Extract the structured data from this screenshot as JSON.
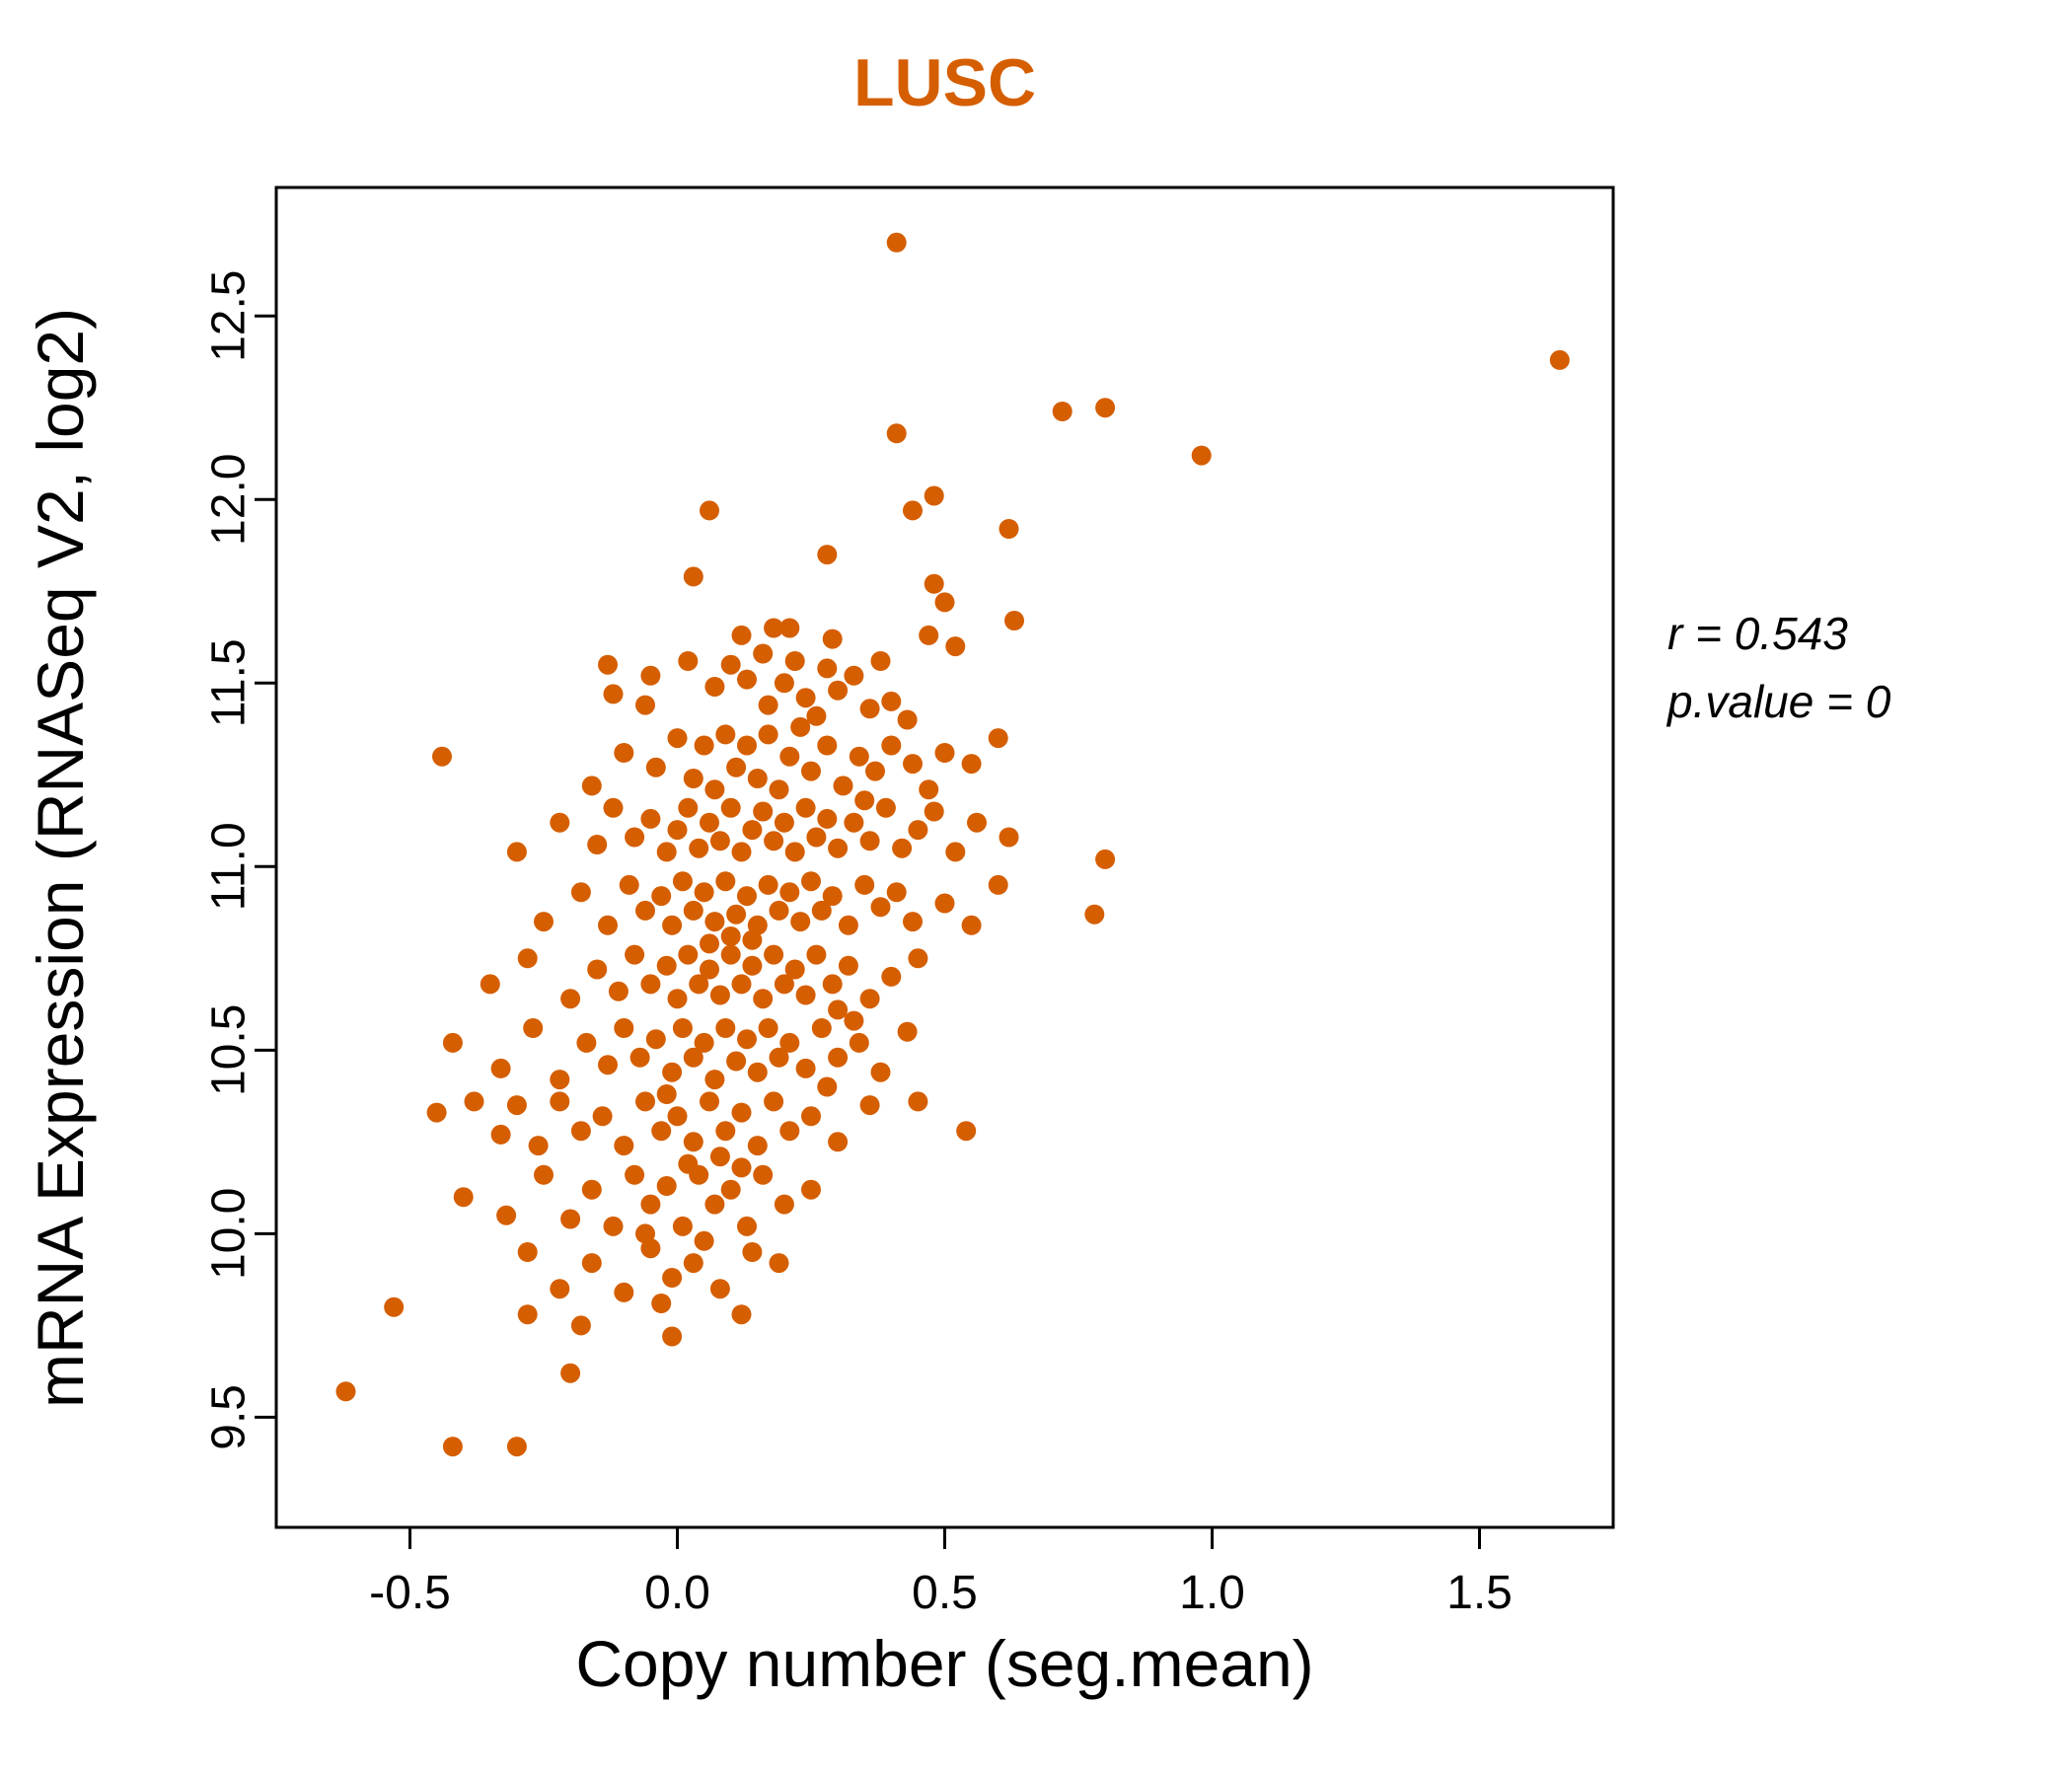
{
  "chart_data": {
    "type": "scatter",
    "title": "LUSC",
    "xlabel": "Copy number (seg.mean)",
    "ylabel": "mRNA Expression (RNASeq V2, log2)",
    "xlim": [
      -0.75,
      1.75
    ],
    "ylim": [
      9.2,
      12.85
    ],
    "x_ticks": [
      -0.5,
      0.0,
      0.5,
      1.0,
      1.5
    ],
    "x_tick_labels": [
      "-0.5",
      "0.0",
      "0.5",
      "1.0",
      "1.5"
    ],
    "y_ticks": [
      9.5,
      10.0,
      10.5,
      11.0,
      11.5,
      12.0,
      12.5
    ],
    "y_tick_labels": [
      "9.5",
      "10.0",
      "10.5",
      "11.0",
      "11.5",
      "12.0",
      "12.5"
    ],
    "grid": false,
    "point_color": "#D55E00",
    "point_radius": 10,
    "points": [
      [
        0.41,
        12.7
      ],
      [
        1.65,
        12.38
      ],
      [
        0.72,
        12.24
      ],
      [
        0.8,
        12.25
      ],
      [
        0.98,
        12.12
      ],
      [
        0.41,
        12.18
      ],
      [
        0.48,
        12.01
      ],
      [
        0.44,
        11.97
      ],
      [
        0.06,
        11.97
      ],
      [
        0.62,
        11.92
      ],
      [
        0.28,
        11.85
      ],
      [
        0.03,
        11.79
      ],
      [
        0.48,
        11.77
      ],
      [
        0.5,
        11.72
      ],
      [
        0.63,
        11.67
      ],
      [
        0.18,
        11.65
      ],
      [
        0.47,
        11.63
      ],
      [
        0.52,
        11.6
      ],
      [
        -0.13,
        11.55
      ],
      [
        -0.12,
        11.47
      ],
      [
        -0.05,
        11.52
      ],
      [
        0.02,
        11.56
      ],
      [
        0.07,
        11.49
      ],
      [
        0.1,
        11.55
      ],
      [
        0.13,
        11.51
      ],
      [
        0.16,
        11.58
      ],
      [
        0.17,
        11.44
      ],
      [
        0.2,
        11.5
      ],
      [
        0.22,
        11.56
      ],
      [
        0.24,
        11.46
      ],
      [
        0.26,
        11.41
      ],
      [
        0.28,
        11.54
      ],
      [
        0.3,
        11.48
      ],
      [
        0.33,
        11.52
      ],
      [
        0.36,
        11.43
      ],
      [
        0.38,
        11.56
      ],
      [
        0.4,
        11.45
      ],
      [
        0.43,
        11.4
      ],
      [
        0.29,
        11.62
      ],
      [
        0.12,
        11.63
      ],
      [
        0.21,
        11.65
      ],
      [
        -0.06,
        11.44
      ],
      [
        -0.44,
        11.3
      ],
      [
        -0.16,
        11.22
      ],
      [
        -0.1,
        11.31
      ],
      [
        -0.04,
        11.27
      ],
      [
        0.0,
        11.35
      ],
      [
        0.03,
        11.24
      ],
      [
        0.05,
        11.33
      ],
      [
        0.07,
        11.21
      ],
      [
        0.09,
        11.36
      ],
      [
        0.11,
        11.27
      ],
      [
        0.13,
        11.33
      ],
      [
        0.15,
        11.24
      ],
      [
        0.17,
        11.36
      ],
      [
        0.19,
        11.21
      ],
      [
        0.21,
        11.3
      ],
      [
        0.23,
        11.38
      ],
      [
        0.25,
        11.26
      ],
      [
        0.28,
        11.33
      ],
      [
        0.31,
        11.22
      ],
      [
        0.34,
        11.3
      ],
      [
        0.37,
        11.26
      ],
      [
        0.4,
        11.33
      ],
      [
        0.44,
        11.28
      ],
      [
        0.47,
        11.21
      ],
      [
        0.55,
        11.28
      ],
      [
        0.6,
        11.35
      ],
      [
        0.5,
        11.31
      ],
      [
        -0.3,
        11.04
      ],
      [
        -0.22,
        11.12
      ],
      [
        -0.15,
        11.06
      ],
      [
        -0.12,
        11.16
      ],
      [
        -0.08,
        11.08
      ],
      [
        -0.05,
        11.13
      ],
      [
        -0.02,
        11.04
      ],
      [
        0.0,
        11.1
      ],
      [
        0.02,
        11.16
      ],
      [
        0.04,
        11.05
      ],
      [
        0.06,
        11.12
      ],
      [
        0.08,
        11.07
      ],
      [
        0.1,
        11.16
      ],
      [
        0.12,
        11.04
      ],
      [
        0.14,
        11.1
      ],
      [
        0.16,
        11.15
      ],
      [
        0.18,
        11.07
      ],
      [
        0.2,
        11.12
      ],
      [
        0.22,
        11.04
      ],
      [
        0.24,
        11.16
      ],
      [
        0.26,
        11.08
      ],
      [
        0.28,
        11.13
      ],
      [
        0.3,
        11.05
      ],
      [
        0.33,
        11.12
      ],
      [
        0.36,
        11.07
      ],
      [
        0.39,
        11.16
      ],
      [
        0.42,
        11.05
      ],
      [
        0.45,
        11.1
      ],
      [
        0.48,
        11.15
      ],
      [
        0.52,
        11.04
      ],
      [
        0.56,
        11.12
      ],
      [
        0.8,
        11.02
      ],
      [
        0.62,
        11.08
      ],
      [
        0.35,
        11.18
      ],
      [
        -0.25,
        10.85
      ],
      [
        -0.18,
        10.93
      ],
      [
        -0.13,
        10.84
      ],
      [
        -0.09,
        10.95
      ],
      [
        -0.06,
        10.88
      ],
      [
        -0.03,
        10.92
      ],
      [
        -0.01,
        10.84
      ],
      [
        0.01,
        10.96
      ],
      [
        0.03,
        10.88
      ],
      [
        0.05,
        10.93
      ],
      [
        0.07,
        10.85
      ],
      [
        0.09,
        10.96
      ],
      [
        0.11,
        10.87
      ],
      [
        0.13,
        10.92
      ],
      [
        0.15,
        10.84
      ],
      [
        0.17,
        10.95
      ],
      [
        0.19,
        10.88
      ],
      [
        0.21,
        10.93
      ],
      [
        0.23,
        10.85
      ],
      [
        0.25,
        10.96
      ],
      [
        0.27,
        10.88
      ],
      [
        0.29,
        10.92
      ],
      [
        0.32,
        10.84
      ],
      [
        0.35,
        10.95
      ],
      [
        0.38,
        10.89
      ],
      [
        0.41,
        10.93
      ],
      [
        0.44,
        10.85
      ],
      [
        0.5,
        10.9
      ],
      [
        0.55,
        10.84
      ],
      [
        0.78,
        10.87
      ],
      [
        0.6,
        10.95
      ],
      [
        0.1,
        10.81
      ],
      [
        0.06,
        10.79
      ],
      [
        0.14,
        10.8
      ],
      [
        -0.35,
        10.68
      ],
      [
        -0.28,
        10.75
      ],
      [
        -0.2,
        10.64
      ],
      [
        -0.15,
        10.72
      ],
      [
        -0.11,
        10.66
      ],
      [
        -0.08,
        10.76
      ],
      [
        -0.05,
        10.68
      ],
      [
        -0.02,
        10.73
      ],
      [
        0.0,
        10.64
      ],
      [
        0.02,
        10.76
      ],
      [
        0.04,
        10.68
      ],
      [
        0.06,
        10.72
      ],
      [
        0.08,
        10.65
      ],
      [
        0.1,
        10.76
      ],
      [
        0.12,
        10.68
      ],
      [
        0.14,
        10.73
      ],
      [
        0.16,
        10.64
      ],
      [
        0.18,
        10.76
      ],
      [
        0.2,
        10.68
      ],
      [
        0.22,
        10.72
      ],
      [
        0.24,
        10.65
      ],
      [
        0.26,
        10.76
      ],
      [
        0.29,
        10.68
      ],
      [
        0.32,
        10.73
      ],
      [
        0.36,
        10.64
      ],
      [
        0.4,
        10.7
      ],
      [
        0.45,
        10.75
      ],
      [
        0.3,
        10.61
      ],
      [
        -0.42,
        10.52
      ],
      [
        -0.33,
        10.45
      ],
      [
        -0.27,
        10.56
      ],
      [
        -0.22,
        10.42
      ],
      [
        -0.17,
        10.52
      ],
      [
        -0.13,
        10.46
      ],
      [
        -0.1,
        10.56
      ],
      [
        -0.07,
        10.48
      ],
      [
        -0.04,
        10.53
      ],
      [
        -0.01,
        10.44
      ],
      [
        0.01,
        10.56
      ],
      [
        0.03,
        10.48
      ],
      [
        0.05,
        10.52
      ],
      [
        0.07,
        10.42
      ],
      [
        0.09,
        10.56
      ],
      [
        0.11,
        10.47
      ],
      [
        0.13,
        10.53
      ],
      [
        0.15,
        10.44
      ],
      [
        0.17,
        10.56
      ],
      [
        0.19,
        10.48
      ],
      [
        0.21,
        10.52
      ],
      [
        0.24,
        10.45
      ],
      [
        0.27,
        10.56
      ],
      [
        0.3,
        10.48
      ],
      [
        0.34,
        10.52
      ],
      [
        0.38,
        10.44
      ],
      [
        0.43,
        10.55
      ],
      [
        0.28,
        10.4
      ],
      [
        0.33,
        10.58
      ],
      [
        -0.45,
        10.33
      ],
      [
        -0.38,
        10.36
      ],
      [
        -0.33,
        10.27
      ],
      [
        -0.3,
        10.35
      ],
      [
        -0.26,
        10.24
      ],
      [
        -0.22,
        10.36
      ],
      [
        -0.18,
        10.28
      ],
      [
        -0.14,
        10.32
      ],
      [
        -0.1,
        10.24
      ],
      [
        -0.06,
        10.36
      ],
      [
        -0.03,
        10.28
      ],
      [
        0.0,
        10.32
      ],
      [
        0.03,
        10.25
      ],
      [
        0.06,
        10.36
      ],
      [
        0.09,
        10.28
      ],
      [
        0.12,
        10.33
      ],
      [
        0.15,
        10.24
      ],
      [
        0.18,
        10.36
      ],
      [
        0.21,
        10.28
      ],
      [
        0.25,
        10.32
      ],
      [
        0.3,
        10.25
      ],
      [
        0.36,
        10.35
      ],
      [
        0.45,
        10.36
      ],
      [
        0.54,
        10.28
      ],
      [
        0.08,
        10.21
      ],
      [
        -0.02,
        10.38
      ],
      [
        -0.4,
        10.1
      ],
      [
        -0.32,
        10.05
      ],
      [
        -0.25,
        10.16
      ],
      [
        -0.2,
        10.04
      ],
      [
        -0.16,
        10.12
      ],
      [
        -0.12,
        10.02
      ],
      [
        -0.08,
        10.16
      ],
      [
        -0.05,
        10.08
      ],
      [
        -0.02,
        10.13
      ],
      [
        0.01,
        10.02
      ],
      [
        0.04,
        10.16
      ],
      [
        0.07,
        10.08
      ],
      [
        0.1,
        10.12
      ],
      [
        0.13,
        10.02
      ],
      [
        0.16,
        10.16
      ],
      [
        0.2,
        10.08
      ],
      [
        0.25,
        10.12
      ],
      [
        0.02,
        10.19
      ],
      [
        -0.06,
        10.0
      ],
      [
        0.12,
        10.18
      ],
      [
        -0.28,
        9.95
      ],
      [
        -0.22,
        9.85
      ],
      [
        -0.16,
        9.92
      ],
      [
        -0.1,
        9.84
      ],
      [
        -0.05,
        9.96
      ],
      [
        -0.01,
        9.88
      ],
      [
        0.03,
        9.92
      ],
      [
        0.08,
        9.85
      ],
      [
        0.14,
        9.95
      ],
      [
        0.19,
        9.92
      ],
      [
        -0.03,
        9.81
      ],
      [
        0.05,
        9.98
      ],
      [
        -0.62,
        9.57
      ],
      [
        -0.53,
        9.8
      ],
      [
        -0.42,
        9.42
      ],
      [
        -0.3,
        9.42
      ],
      [
        -0.28,
        9.78
      ],
      [
        -0.2,
        9.62
      ],
      [
        0.12,
        9.78
      ],
      [
        -0.01,
        9.72
      ],
      [
        -0.18,
        9.75
      ]
    ]
  },
  "annotation": {
    "r_label": "r = 0.543",
    "p_label": "p.value = 0"
  },
  "colors": {
    "title": "#D55E00",
    "points": "#D55E00",
    "axis": "#000000"
  }
}
